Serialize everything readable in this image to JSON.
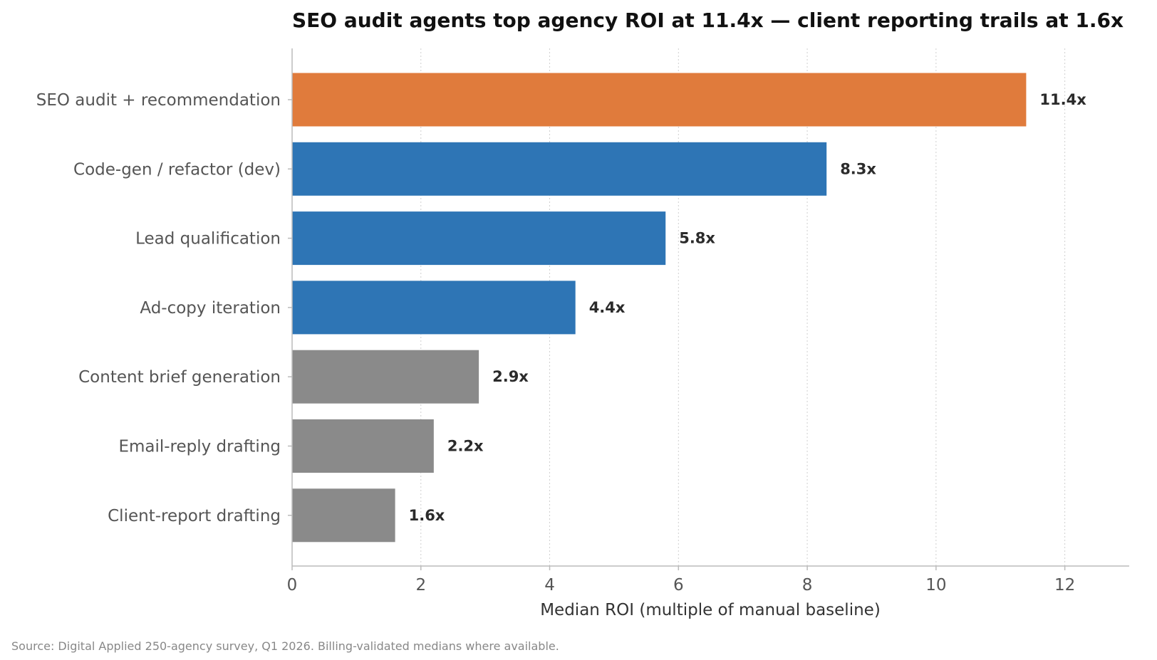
{
  "chart_data": {
    "type": "bar",
    "orientation": "horizontal",
    "title": "SEO audit agents top agency ROI at 11.4x — client reporting trails at 1.6x",
    "xlabel": "Median ROI (multiple of manual baseline)",
    "ylabel": "",
    "xlim": [
      0,
      13
    ],
    "xticks": [
      0,
      2,
      4,
      6,
      8,
      10,
      12
    ],
    "grid": "vertical dotted",
    "categories": [
      "SEO audit + recommendation",
      "Code-gen / refactor (dev)",
      "Lead qualification",
      "Ad-copy iteration",
      "Content brief generation",
      "Email-reply drafting",
      "Client-report drafting"
    ],
    "values": [
      11.4,
      8.3,
      5.8,
      4.4,
      2.9,
      2.2,
      1.6
    ],
    "value_labels": [
      "11.4x",
      "8.3x",
      "5.8x",
      "4.4x",
      "2.9x",
      "2.2x",
      "1.6x"
    ],
    "bar_colors": [
      "#e07b3c",
      "#2e75b5",
      "#2e75b5",
      "#2e75b5",
      "#8a8a8a",
      "#8a8a8a",
      "#8a8a8a"
    ],
    "source": "Source: Digital Applied 250-agency survey, Q1 2026. Billing-validated medians where available."
  }
}
